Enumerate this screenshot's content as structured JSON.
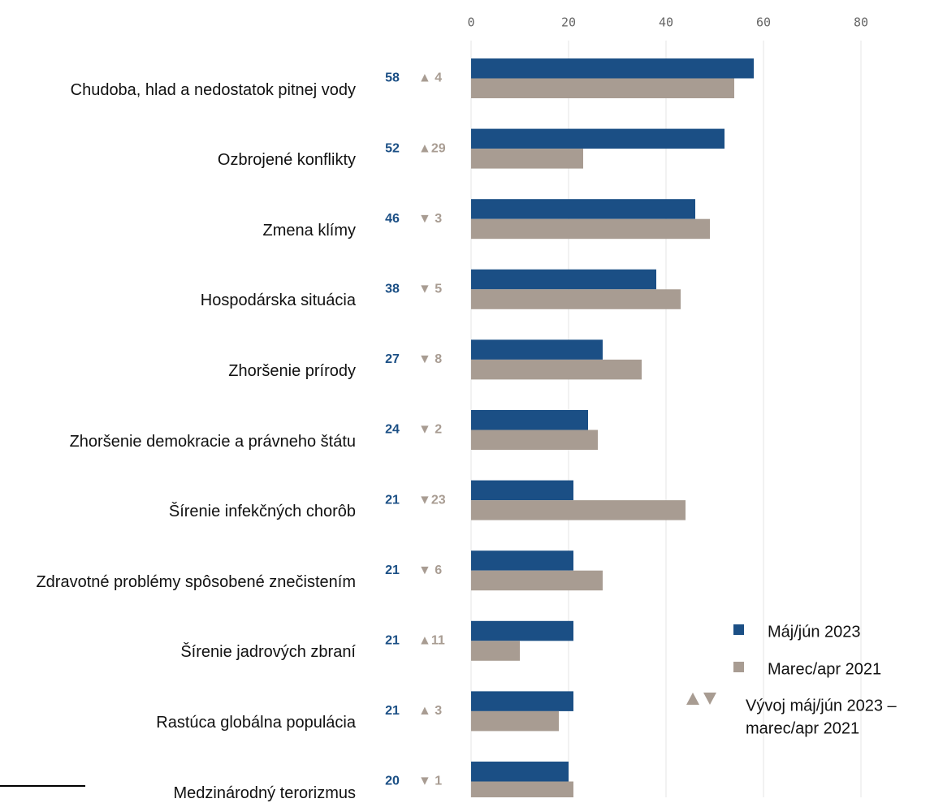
{
  "chart_data": {
    "type": "bar",
    "orientation": "horizontal",
    "categories": [
      "Chudoba, hlad a nedostatok pitnej vody",
      "Ozbrojené konflikty",
      "Zmena klímy",
      "Hospodárska situácia",
      "Zhoršenie prírody",
      "Zhoršenie demokracie a právneho štátu",
      "Šírenie infekčných chorôb",
      "Zdravotné problémy spôsobené znečistením",
      "Šírenie jadrových zbraní",
      "Rastúca globálna populácia",
      "Medzinárodný terorizmus"
    ],
    "series": [
      {
        "name": "Máj/jún 2023",
        "color": "#1b4f85",
        "values": [
          58,
          52,
          46,
          38,
          27,
          24,
          21,
          21,
          21,
          21,
          20
        ]
      },
      {
        "name": "Marec/apr 2021",
        "color": "#a89c92",
        "values": [
          54,
          23,
          49,
          43,
          35,
          26,
          44,
          27,
          10,
          18,
          21
        ]
      }
    ],
    "change_labels": [
      "▲ 4",
      "▲29",
      "▼ 3",
      "▼ 5",
      "▼ 8",
      "▼ 2",
      "▼23",
      "▼ 6",
      "▲11",
      "▲ 3",
      "▼ 1"
    ],
    "change_legend": [
      "Vývoj máj/jún 2023 –",
      "marec/apr 2021"
    ],
    "xlim": [
      0,
      80
    ],
    "xticks": [
      0,
      20,
      40,
      60,
      80
    ],
    "grid": true
  }
}
